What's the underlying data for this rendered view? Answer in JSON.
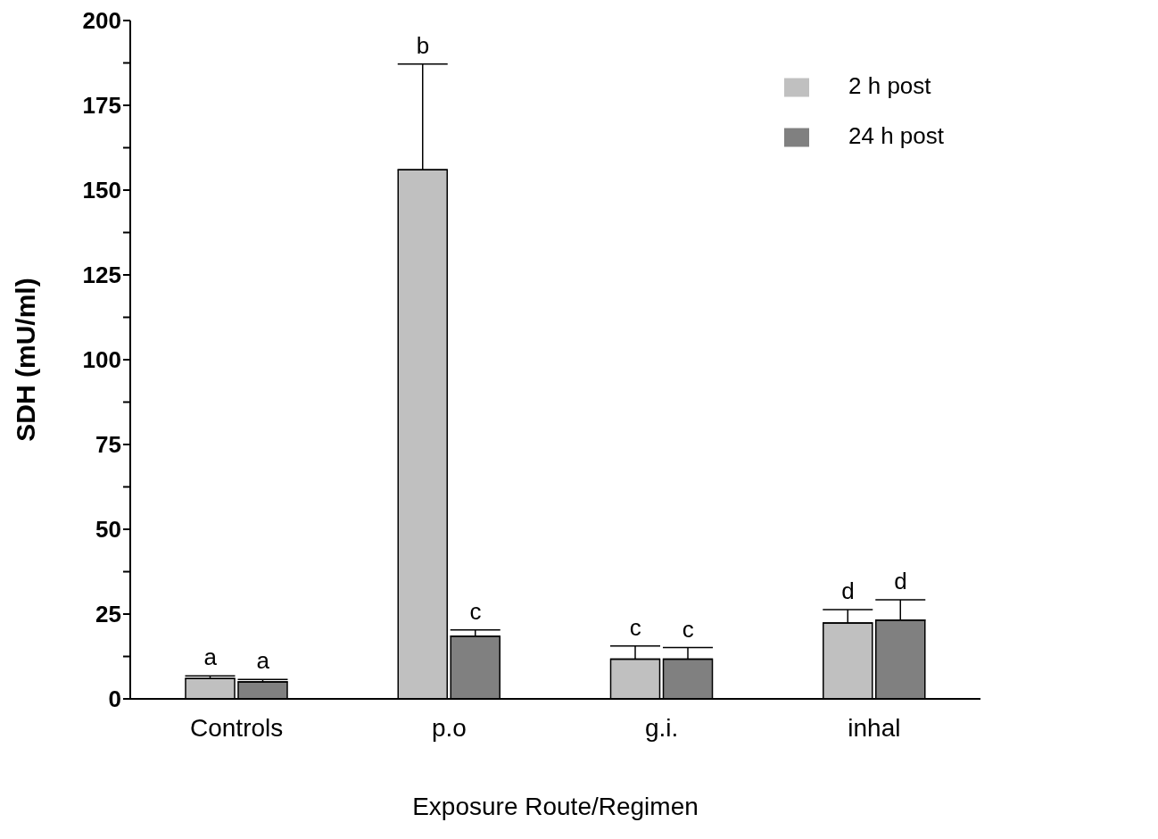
{
  "chart_data": {
    "type": "bar",
    "xlabel": "Exposure Route/Regimen",
    "ylabel": "SDH (mU/ml)",
    "categories": [
      "Controls",
      "p.o",
      "g.i.",
      "inhal"
    ],
    "series": [
      {
        "name": "2 h post",
        "color": "#c0c0c0",
        "values": [
          6,
          156,
          11.7,
          22.4
        ],
        "errors": [
          [
            6,
            6.8
          ],
          [
            156,
            187.2
          ],
          [
            11.7,
            15.6
          ],
          [
            22.4,
            26.3
          ]
        ]
      },
      {
        "name": "24 h post",
        "color": "#808080",
        "values": [
          5,
          18.5,
          11.7,
          23.2
        ],
        "errors": [
          [
            5,
            5.7
          ],
          [
            18.5,
            20.3
          ],
          [
            11.7,
            15.1
          ],
          [
            23.2,
            29.2
          ]
        ]
      }
    ],
    "ylim": [
      0,
      200
    ],
    "yticks": [
      0,
      {
        "value": 12.5,
        "label": null
      },
      25,
      {
        "value": 37.5,
        "label": null
      },
      50,
      {
        "value": 62.5,
        "label": null
      },
      75,
      {
        "value": 87.5,
        "label": null
      },
      100,
      {
        "value": 112.5,
        "label": null
      },
      125,
      {
        "value": 137.5,
        "label": null
      },
      150,
      {
        "value": 162.5,
        "label": null
      },
      175,
      {
        "value": 187.5,
        "label": null
      },
      200
    ],
    "annotations": [
      {
        "text": "a",
        "x": "Controls",
        "y": 6
      },
      {
        "text": "a",
        "x": "Controls",
        "y": 5
      },
      "b",
      {
        "text": "c",
        "x": "p.o",
        "y": 18.5
      },
      {
        "text": "c",
        "x": "g.i.",
        "y": 11.7
      },
      {
        "text": "c",
        "x": "g.i.",
        "y": 11.7
      },
      {
        "text": "d",
        "x": "inhal",
        "y": 22.4
      },
      {
        "text": "d",
        "x": "inhal",
        "y": 23.2
      }
    ],
    "grid": false,
    "legend": "top right"
  }
}
